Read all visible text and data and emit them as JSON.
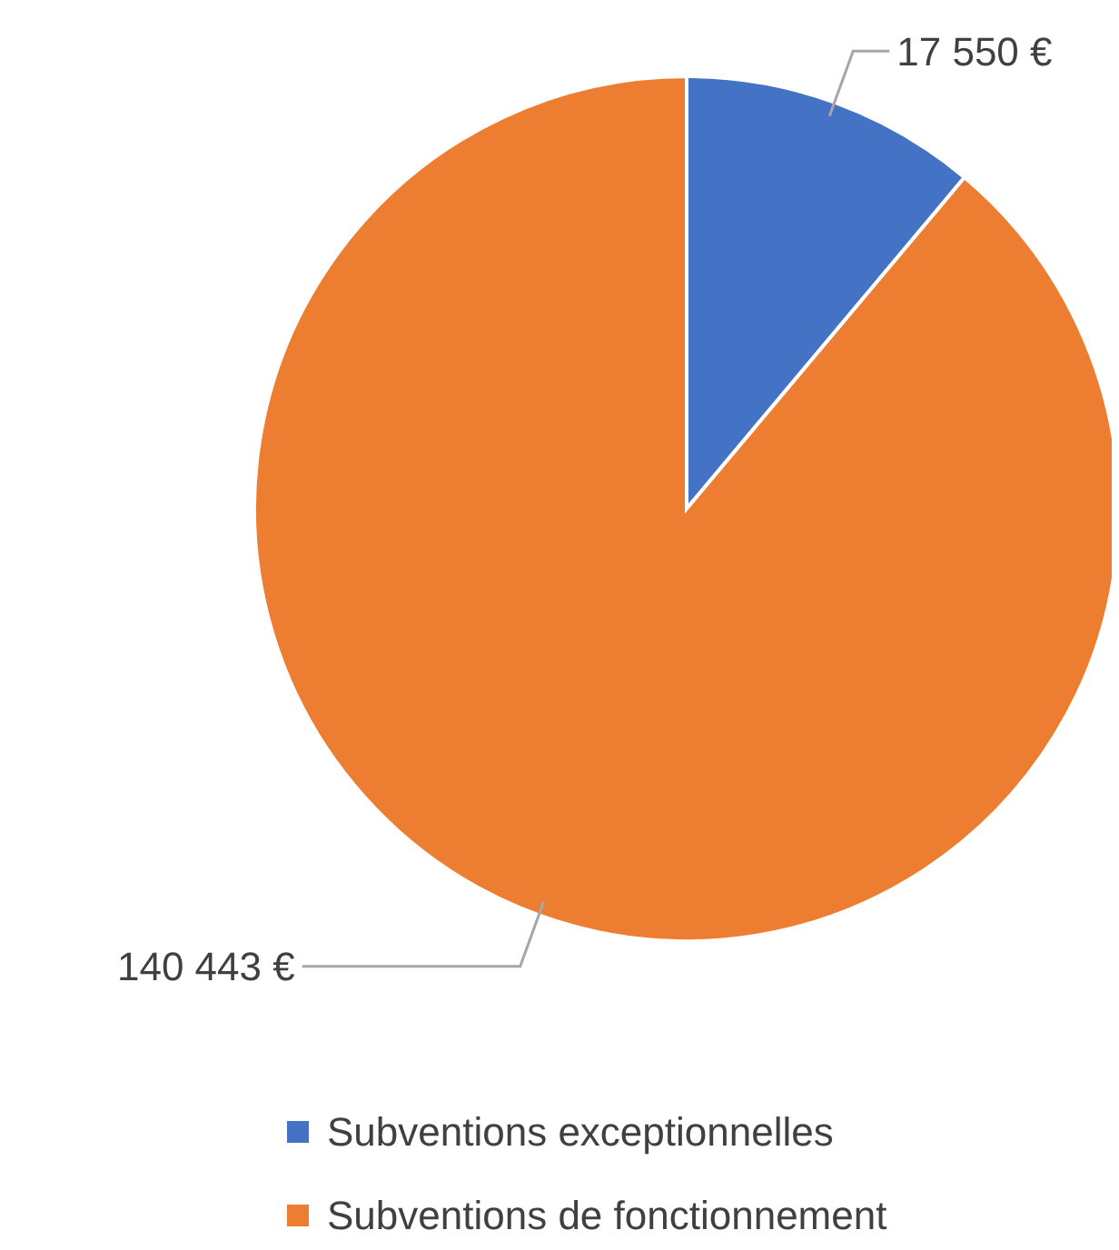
{
  "chart_data": {
    "type": "pie",
    "categories": [
      "Subventions exceptionnelles",
      "Subventions de fonctionnement"
    ],
    "values": [
      17550,
      140443
    ],
    "colors": [
      "#4472c4",
      "#ed7d31"
    ],
    "value_labels": [
      "17 550 €",
      "140 443 €"
    ],
    "legend": "bottom"
  }
}
